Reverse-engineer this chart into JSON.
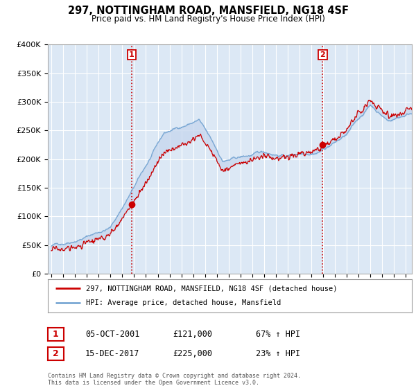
{
  "title": "297, NOTTINGHAM ROAD, MANSFIELD, NG18 4SF",
  "subtitle": "Price paid vs. HM Land Registry's House Price Index (HPI)",
  "ylim": [
    0,
    400000
  ],
  "yticks": [
    0,
    50000,
    100000,
    150000,
    200000,
    250000,
    300000,
    350000,
    400000
  ],
  "ytick_labels": [
    "£0",
    "£50K",
    "£100K",
    "£150K",
    "£200K",
    "£250K",
    "£300K",
    "£350K",
    "£400K"
  ],
  "sale1_date_num": 2001.79,
  "sale1_price": 121000,
  "sale1_label": "1",
  "sale1_date_str": "05-OCT-2001",
  "sale1_pct": "67% ↑ HPI",
  "sale2_date_num": 2017.96,
  "sale2_price": 225000,
  "sale2_label": "2",
  "sale2_date_str": "15-DEC-2017",
  "sale2_pct": "23% ↑ HPI",
  "red_line_color": "#cc0000",
  "blue_line_color": "#7aa8d4",
  "fill_color": "#c8d8ee",
  "vline_color": "#cc0000",
  "background_color": "#dce8f5",
  "grid_color": "#ffffff",
  "legend_label_red": "297, NOTTINGHAM ROAD, MANSFIELD, NG18 4SF (detached house)",
  "legend_label_blue": "HPI: Average price, detached house, Mansfield",
  "footer": "Contains HM Land Registry data © Crown copyright and database right 2024.\nThis data is licensed under the Open Government Licence v3.0.",
  "xmin": 1994.7,
  "xmax": 2025.5
}
